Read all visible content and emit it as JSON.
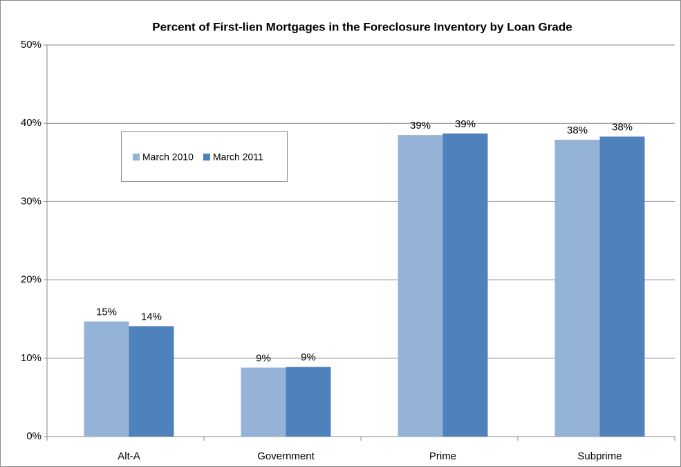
{
  "chart_data": {
    "type": "bar",
    "title": "Percent of First-lien Mortgages in the Foreclosure Inventory by Loan Grade",
    "categories": [
      "Alt-A",
      "Government",
      "Prime",
      "Subprime"
    ],
    "series": [
      {
        "name": "March 2010",
        "color": "#95b3d7",
        "values": [
          14.7,
          8.8,
          38.5,
          37.9
        ],
        "value_labels": [
          "15%",
          "9%",
          "39%",
          "38%"
        ]
      },
      {
        "name": "March 2011",
        "color": "#4f81bd",
        "values": [
          14.1,
          8.9,
          38.7,
          38.3
        ],
        "value_labels": [
          "14%",
          "9%",
          "39%",
          "38%"
        ]
      }
    ],
    "ylim": [
      0,
      50
    ],
    "yticks": [
      {
        "value": 0,
        "label": "0%"
      },
      {
        "value": 10,
        "label": "10%"
      },
      {
        "value": 20,
        "label": "20%"
      },
      {
        "value": 30,
        "label": "30%"
      },
      {
        "value": 40,
        "label": "40%"
      },
      {
        "value": 50,
        "label": "50%"
      }
    ],
    "grid": true
  }
}
